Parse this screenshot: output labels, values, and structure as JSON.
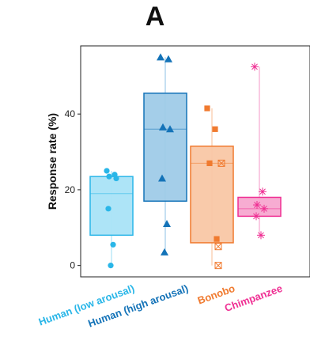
{
  "chart_data": {
    "type": "box",
    "title": "A",
    "xlabel": "",
    "ylabel": "Response rate (%)",
    "ylim": [
      -3,
      58
    ],
    "yticks": [
      0,
      20,
      40
    ],
    "grid": false,
    "legend": "none",
    "categories": [
      "Human (low arousal)",
      "Human (high arousal)",
      "Bonobo",
      "Chimpanzee"
    ],
    "series": [
      {
        "name": "Human (low arousal)",
        "color": "#29b6e8",
        "fill": "#a9e3f7",
        "marker": "circle",
        "min": 0,
        "q1": 8,
        "median": 19,
        "q3": 23.5,
        "max": 25,
        "points": [
          25,
          24,
          23.5,
          23,
          15,
          5.5,
          0
        ],
        "open_points": []
      },
      {
        "name": "Human (high arousal)",
        "color": "#1473b8",
        "fill": "#9fcbe8",
        "marker": "triangle",
        "min": 3.5,
        "q1": 17,
        "median": 36,
        "q3": 45.5,
        "max": 55,
        "points": [
          55,
          54.5,
          36.5,
          36,
          23,
          11,
          3.5
        ],
        "open_points": []
      },
      {
        "name": "Bonobo",
        "color": "#f07a2f",
        "fill": "#f9c7a5",
        "marker": "square",
        "min": 0,
        "q1": 6,
        "median": 27,
        "q3": 31.5,
        "max": 41.5,
        "points": [
          41.5,
          36,
          27,
          7
        ],
        "open_points": [
          27,
          5,
          0
        ]
      },
      {
        "name": "Chimpanzee",
        "color": "#ef2f93",
        "fill": "#f7a8d0",
        "marker": "star",
        "min": 8,
        "q1": 13,
        "median": 15,
        "q3": 18,
        "max": 52.5,
        "points": [
          52.5,
          19.5,
          16,
          15,
          13,
          8
        ],
        "open_points": []
      }
    ]
  }
}
